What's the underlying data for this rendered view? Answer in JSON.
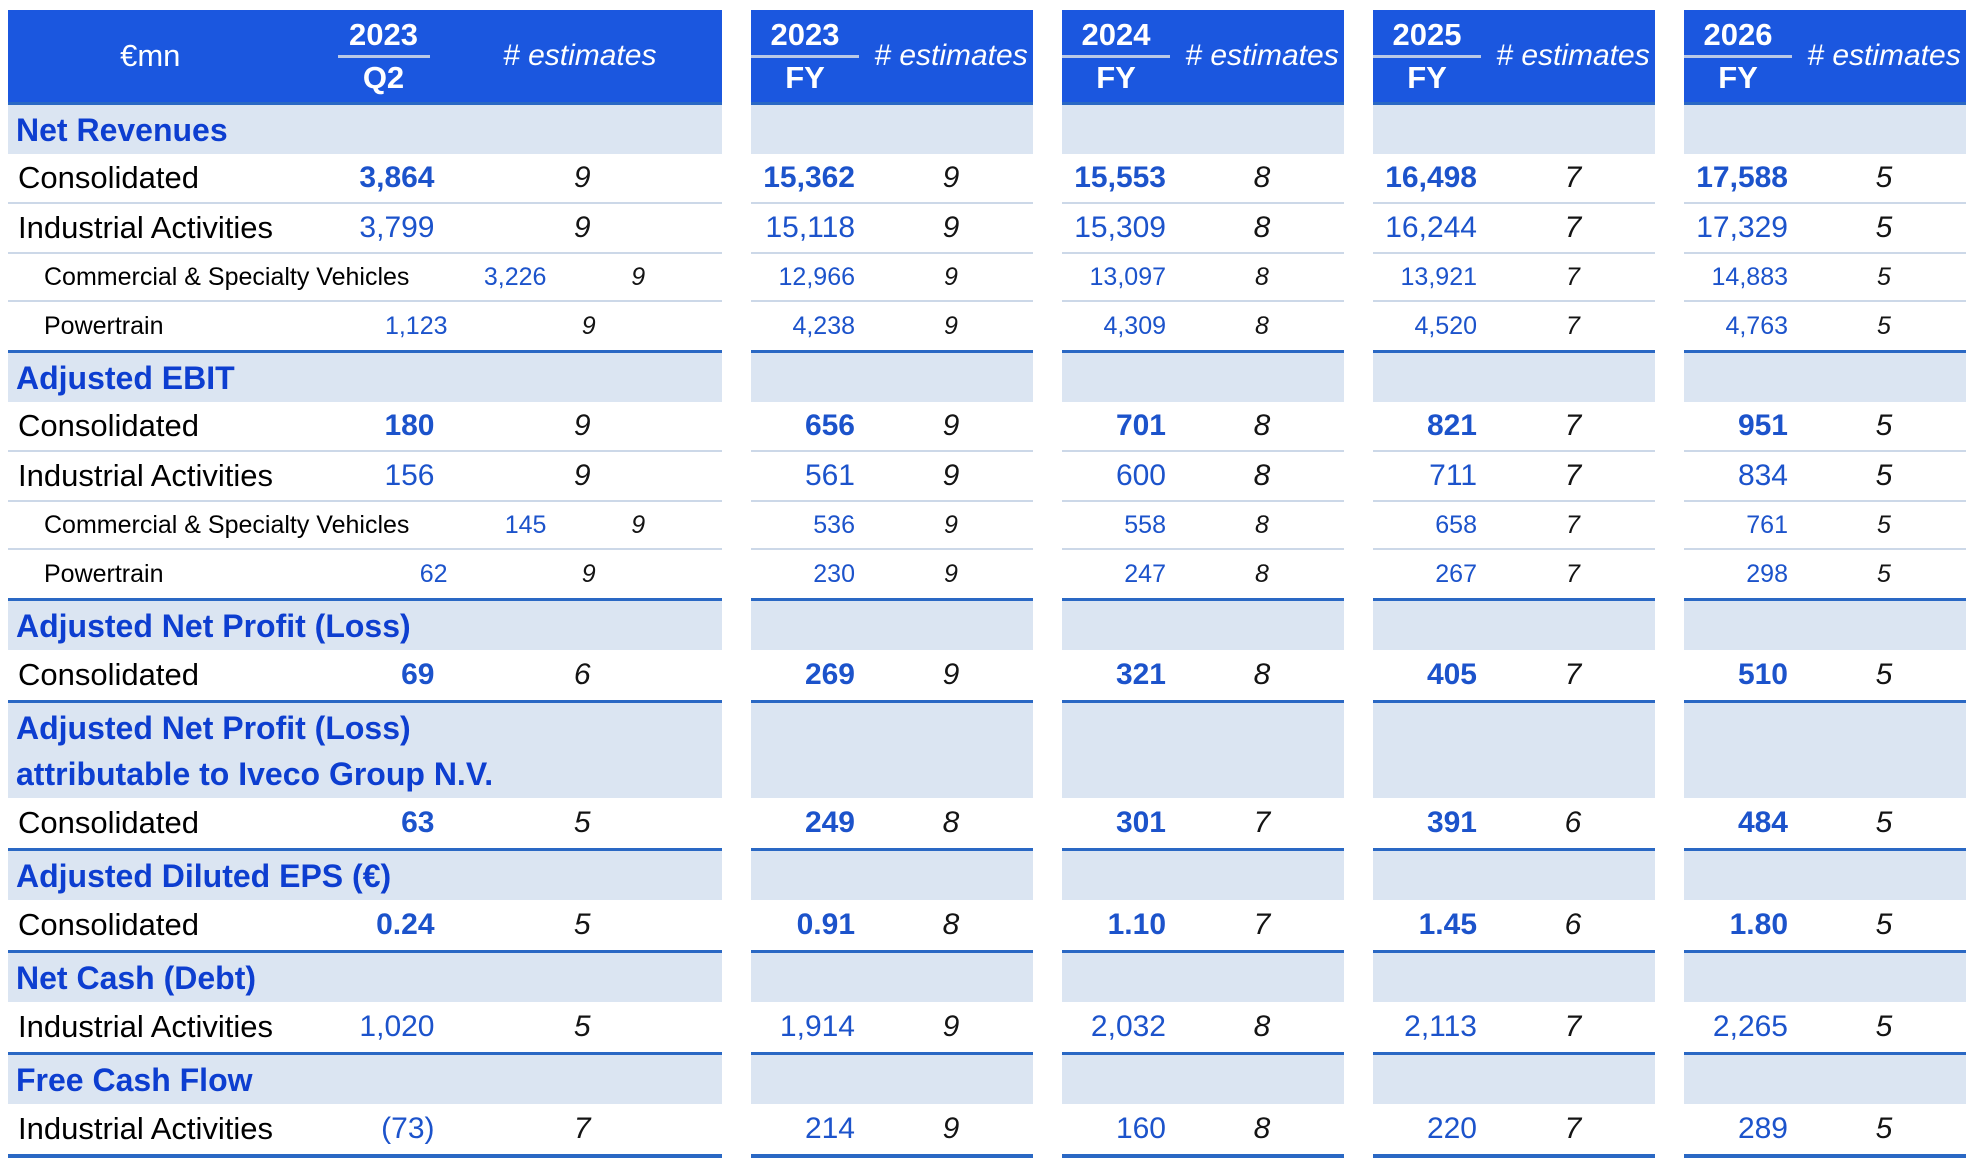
{
  "table": {
    "unit_label": "€mn",
    "estimates_label": "# estimates",
    "columns": [
      {
        "year": "2023",
        "period": "Q2"
      },
      {
        "year": "2023",
        "period": "FY"
      },
      {
        "year": "2024",
        "period": "FY"
      },
      {
        "year": "2025",
        "period": "FY"
      },
      {
        "year": "2026",
        "period": "FY"
      }
    ],
    "rows": [
      {
        "type": "section",
        "label": "Net Revenues"
      },
      {
        "type": "data",
        "level": "main",
        "bold": true,
        "label": "Consolidated",
        "cells": [
          [
            "3,864",
            "9"
          ],
          [
            "15,362",
            "9"
          ],
          [
            "15,553",
            "8"
          ],
          [
            "16,498",
            "7"
          ],
          [
            "17,588",
            "5"
          ]
        ]
      },
      {
        "type": "data",
        "level": "main",
        "bold": false,
        "label": "Industrial Activities",
        "cells": [
          [
            "3,799",
            "9"
          ],
          [
            "15,118",
            "9"
          ],
          [
            "15,309",
            "8"
          ],
          [
            "16,244",
            "7"
          ],
          [
            "17,329",
            "5"
          ]
        ]
      },
      {
        "type": "data",
        "level": "sub",
        "bold": false,
        "label": "Commercial & Specialty Vehicles",
        "cells": [
          [
            "3,226",
            "9"
          ],
          [
            "12,966",
            "9"
          ],
          [
            "13,097",
            "8"
          ],
          [
            "13,921",
            "7"
          ],
          [
            "14,883",
            "5"
          ]
        ]
      },
      {
        "type": "data",
        "level": "sub",
        "bold": false,
        "label": "Powertrain",
        "cells": [
          [
            "1,123",
            "9"
          ],
          [
            "4,238",
            "9"
          ],
          [
            "4,309",
            "8"
          ],
          [
            "4,520",
            "7"
          ],
          [
            "4,763",
            "5"
          ]
        ]
      },
      {
        "type": "section",
        "label": "Adjusted EBIT"
      },
      {
        "type": "data",
        "level": "main",
        "bold": true,
        "label": "Consolidated",
        "cells": [
          [
            "180",
            "9"
          ],
          [
            "656",
            "9"
          ],
          [
            "701",
            "8"
          ],
          [
            "821",
            "7"
          ],
          [
            "951",
            "5"
          ]
        ]
      },
      {
        "type": "data",
        "level": "main",
        "bold": false,
        "label": "Industrial Activities",
        "cells": [
          [
            "156",
            "9"
          ],
          [
            "561",
            "9"
          ],
          [
            "600",
            "8"
          ],
          [
            "711",
            "7"
          ],
          [
            "834",
            "5"
          ]
        ]
      },
      {
        "type": "data",
        "level": "sub",
        "bold": false,
        "label": "Commercial & Specialty Vehicles",
        "cells": [
          [
            "145",
            "9"
          ],
          [
            "536",
            "9"
          ],
          [
            "558",
            "8"
          ],
          [
            "658",
            "7"
          ],
          [
            "761",
            "5"
          ]
        ]
      },
      {
        "type": "data",
        "level": "sub",
        "bold": false,
        "label": "Powertrain",
        "cells": [
          [
            "62",
            "9"
          ],
          [
            "230",
            "9"
          ],
          [
            "247",
            "8"
          ],
          [
            "267",
            "7"
          ],
          [
            "298",
            "5"
          ]
        ]
      },
      {
        "type": "section",
        "label": "Adjusted Net Profit (Loss)"
      },
      {
        "type": "data",
        "level": "main",
        "bold": true,
        "label": "Consolidated",
        "cells": [
          [
            "69",
            "6"
          ],
          [
            "269",
            "9"
          ],
          [
            "321",
            "8"
          ],
          [
            "405",
            "7"
          ],
          [
            "510",
            "5"
          ]
        ]
      },
      {
        "type": "section",
        "label": "Adjusted Net Profit (Loss) attributable to Iveco Group N.V.",
        "two_line": true,
        "line1": "Adjusted Net Profit (Loss)",
        "line2": "attributable to Iveco Group N.V."
      },
      {
        "type": "data",
        "level": "main",
        "bold": true,
        "label": "Consolidated",
        "cells": [
          [
            "63",
            "5"
          ],
          [
            "249",
            "8"
          ],
          [
            "301",
            "7"
          ],
          [
            "391",
            "6"
          ],
          [
            "484",
            "5"
          ]
        ]
      },
      {
        "type": "section",
        "label": "Adjusted Diluted EPS (€)"
      },
      {
        "type": "data",
        "level": "main",
        "bold": true,
        "label": "Consolidated",
        "cells": [
          [
            "0.24",
            "5"
          ],
          [
            "0.91",
            "8"
          ],
          [
            "1.10",
            "7"
          ],
          [
            "1.45",
            "6"
          ],
          [
            "1.80",
            "5"
          ]
        ]
      },
      {
        "type": "section",
        "label": "Net Cash (Debt)"
      },
      {
        "type": "data",
        "level": "main",
        "bold": false,
        "label": "Industrial Activities",
        "cells": [
          [
            "1,020",
            "5"
          ],
          [
            "1,914",
            "9"
          ],
          [
            "2,032",
            "8"
          ],
          [
            "2,113",
            "7"
          ],
          [
            "2,265",
            "5"
          ]
        ]
      },
      {
        "type": "section",
        "label": "Free Cash Flow"
      },
      {
        "type": "data",
        "level": "main",
        "bold": false,
        "label": "Industrial Activities",
        "cells": [
          [
            "(73)",
            "7"
          ],
          [
            "214",
            "9"
          ],
          [
            "160",
            "8"
          ],
          [
            "220",
            "7"
          ],
          [
            "289",
            "5"
          ]
        ]
      }
    ],
    "colors": {
      "header_bg": "#1b57df",
      "section_bg": "#dbe5f2",
      "rule_blue": "#2a68c4",
      "section_text": "#0d3ed0",
      "value_blue": "#1c53cb",
      "separator": "#ccd8e8",
      "estimates_text": "#141414",
      "fraction_line": "#bac9e6"
    }
  }
}
